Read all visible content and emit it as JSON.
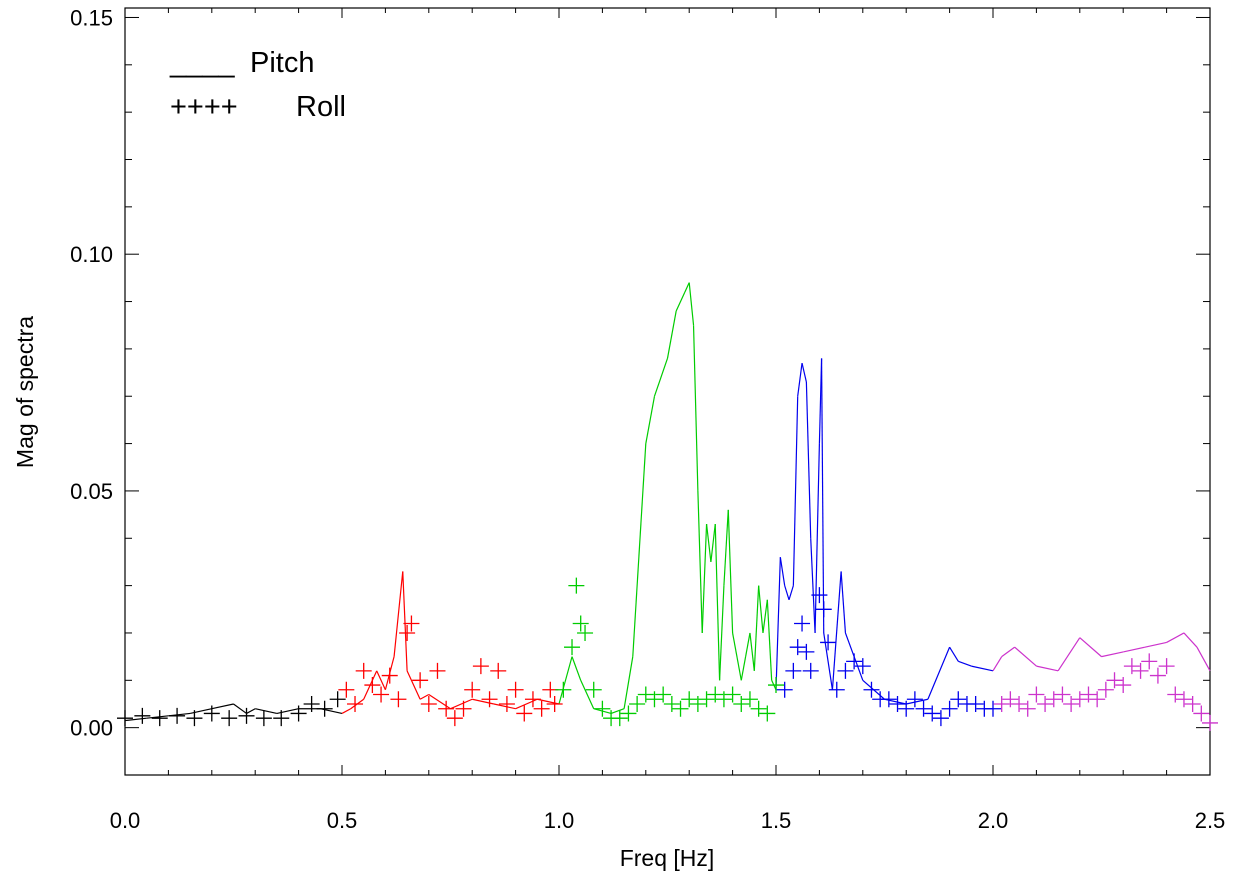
{
  "chart_data": {
    "type": "line",
    "title": "",
    "xlabel": "Freq [Hz]",
    "ylabel": "Mag of spectra",
    "xlim": [
      0.0,
      2.5
    ],
    "ylim": [
      -0.01,
      0.152
    ],
    "grid": false,
    "legend_position": "top-left",
    "x_ticks": [
      "0.0",
      "0.5",
      "1.0",
      "1.5",
      "2.0",
      "2.5"
    ],
    "y_ticks": [
      "0.00",
      "0.05",
      "0.10",
      "0.15"
    ],
    "legend": [
      {
        "marker": "____",
        "label": "Pitch"
      },
      {
        "marker": "++++",
        "label": "Roll"
      }
    ],
    "band_colors": [
      "#000000",
      "#ff0000",
      "#00cc00",
      "#0000ee",
      "#cc33cc"
    ],
    "series": [
      {
        "name": "Pitch",
        "style": "line",
        "points": [
          [
            0.0,
            0.0015
          ],
          [
            0.05,
            0.002
          ],
          [
            0.1,
            0.0025
          ],
          [
            0.15,
            0.003
          ],
          [
            0.2,
            0.004
          ],
          [
            0.25,
            0.005
          ],
          [
            0.28,
            0.003
          ],
          [
            0.3,
            0.004
          ],
          [
            0.35,
            0.003
          ],
          [
            0.4,
            0.004
          ],
          [
            0.45,
            0.004
          ],
          [
            0.5,
            0.003
          ],
          [
            0.52,
            0.004
          ],
          [
            0.55,
            0.006
          ],
          [
            0.58,
            0.012
          ],
          [
            0.6,
            0.008
          ],
          [
            0.62,
            0.015
          ],
          [
            0.64,
            0.033
          ],
          [
            0.65,
            0.012
          ],
          [
            0.68,
            0.006
          ],
          [
            0.7,
            0.007
          ],
          [
            0.75,
            0.004
          ],
          [
            0.8,
            0.006
          ],
          [
            0.85,
            0.005
          ],
          [
            0.9,
            0.004
          ],
          [
            0.95,
            0.006
          ],
          [
            1.0,
            0.005
          ],
          [
            1.03,
            0.015
          ],
          [
            1.05,
            0.01
          ],
          [
            1.08,
            0.004
          ],
          [
            1.12,
            0.003
          ],
          [
            1.15,
            0.004
          ],
          [
            1.17,
            0.015
          ],
          [
            1.2,
            0.06
          ],
          [
            1.22,
            0.07
          ],
          [
            1.25,
            0.078
          ],
          [
            1.27,
            0.088
          ],
          [
            1.29,
            0.092
          ],
          [
            1.3,
            0.094
          ],
          [
            1.31,
            0.085
          ],
          [
            1.32,
            0.05
          ],
          [
            1.33,
            0.02
          ],
          [
            1.34,
            0.043
          ],
          [
            1.35,
            0.035
          ],
          [
            1.36,
            0.043
          ],
          [
            1.37,
            0.01
          ],
          [
            1.38,
            0.03
          ],
          [
            1.39,
            0.046
          ],
          [
            1.4,
            0.02
          ],
          [
            1.42,
            0.01
          ],
          [
            1.43,
            0.015
          ],
          [
            1.44,
            0.02
          ],
          [
            1.45,
            0.012
          ],
          [
            1.46,
            0.03
          ],
          [
            1.47,
            0.02
          ],
          [
            1.48,
            0.027
          ],
          [
            1.49,
            0.01
          ],
          [
            1.5,
            0.008
          ],
          [
            1.51,
            0.036
          ],
          [
            1.52,
            0.03
          ],
          [
            1.53,
            0.027
          ],
          [
            1.54,
            0.03
          ],
          [
            1.55,
            0.07
          ],
          [
            1.56,
            0.077
          ],
          [
            1.57,
            0.073
          ],
          [
            1.58,
            0.04
          ],
          [
            1.59,
            0.02
          ],
          [
            1.6,
            0.06
          ],
          [
            1.605,
            0.078
          ],
          [
            1.61,
            0.02
          ],
          [
            1.63,
            0.008
          ],
          [
            1.65,
            0.033
          ],
          [
            1.66,
            0.02
          ],
          [
            1.7,
            0.01
          ],
          [
            1.75,
            0.006
          ],
          [
            1.8,
            0.005
          ],
          [
            1.85,
            0.006
          ],
          [
            1.9,
            0.017
          ],
          [
            1.92,
            0.014
          ],
          [
            1.95,
            0.013
          ],
          [
            2.0,
            0.012
          ],
          [
            2.02,
            0.015
          ],
          [
            2.05,
            0.017
          ],
          [
            2.1,
            0.013
          ],
          [
            2.15,
            0.012
          ],
          [
            2.2,
            0.019
          ],
          [
            2.25,
            0.015
          ],
          [
            2.3,
            0.016
          ],
          [
            2.35,
            0.017
          ],
          [
            2.4,
            0.018
          ],
          [
            2.44,
            0.02
          ],
          [
            2.47,
            0.017
          ],
          [
            2.5,
            0.012
          ]
        ]
      },
      {
        "name": "Roll",
        "style": "plus",
        "points": [
          [
            0.0,
            0.002
          ],
          [
            0.04,
            0.0025
          ],
          [
            0.08,
            0.002
          ],
          [
            0.12,
            0.0025
          ],
          [
            0.16,
            0.002
          ],
          [
            0.2,
            0.003
          ],
          [
            0.24,
            0.002
          ],
          [
            0.28,
            0.0025
          ],
          [
            0.32,
            0.002
          ],
          [
            0.36,
            0.002
          ],
          [
            0.4,
            0.003
          ],
          [
            0.43,
            0.005
          ],
          [
            0.46,
            0.004
          ],
          [
            0.49,
            0.006
          ],
          [
            0.51,
            0.008
          ],
          [
            0.53,
            0.005
          ],
          [
            0.55,
            0.012
          ],
          [
            0.57,
            0.009
          ],
          [
            0.59,
            0.007
          ],
          [
            0.61,
            0.011
          ],
          [
            0.63,
            0.006
          ],
          [
            0.65,
            0.02
          ],
          [
            0.66,
            0.022
          ],
          [
            0.68,
            0.01
          ],
          [
            0.7,
            0.005
          ],
          [
            0.72,
            0.012
          ],
          [
            0.74,
            0.004
          ],
          [
            0.76,
            0.002
          ],
          [
            0.78,
            0.004
          ],
          [
            0.8,
            0.008
          ],
          [
            0.82,
            0.013
          ],
          [
            0.84,
            0.006
          ],
          [
            0.86,
            0.012
          ],
          [
            0.88,
            0.005
          ],
          [
            0.9,
            0.008
          ],
          [
            0.92,
            0.003
          ],
          [
            0.94,
            0.006
          ],
          [
            0.96,
            0.004
          ],
          [
            0.98,
            0.008
          ],
          [
            0.99,
            0.005
          ],
          [
            1.01,
            0.008
          ],
          [
            1.03,
            0.017
          ],
          [
            1.04,
            0.03
          ],
          [
            1.05,
            0.022
          ],
          [
            1.06,
            0.02
          ],
          [
            1.08,
            0.008
          ],
          [
            1.1,
            0.004
          ],
          [
            1.12,
            0.002
          ],
          [
            1.14,
            0.002
          ],
          [
            1.16,
            0.003
          ],
          [
            1.18,
            0.005
          ],
          [
            1.2,
            0.007
          ],
          [
            1.22,
            0.006
          ],
          [
            1.24,
            0.007
          ],
          [
            1.26,
            0.005
          ],
          [
            1.28,
            0.004
          ],
          [
            1.3,
            0.006
          ],
          [
            1.32,
            0.005
          ],
          [
            1.34,
            0.006
          ],
          [
            1.36,
            0.007
          ],
          [
            1.38,
            0.006
          ],
          [
            1.4,
            0.007
          ],
          [
            1.42,
            0.005
          ],
          [
            1.44,
            0.006
          ],
          [
            1.46,
            0.004
          ],
          [
            1.48,
            0.003
          ],
          [
            1.5,
            0.009
          ],
          [
            1.52,
            0.008
          ],
          [
            1.54,
            0.012
          ],
          [
            1.55,
            0.017
          ],
          [
            1.56,
            0.022
          ],
          [
            1.57,
            0.016
          ],
          [
            1.58,
            0.012
          ],
          [
            1.6,
            0.028
          ],
          [
            1.61,
            0.025
          ],
          [
            1.62,
            0.018
          ],
          [
            1.64,
            0.008
          ],
          [
            1.66,
            0.012
          ],
          [
            1.68,
            0.014
          ],
          [
            1.7,
            0.013
          ],
          [
            1.72,
            0.008
          ],
          [
            1.74,
            0.006
          ],
          [
            1.76,
            0.006
          ],
          [
            1.78,
            0.005
          ],
          [
            1.8,
            0.004
          ],
          [
            1.82,
            0.006
          ],
          [
            1.84,
            0.004
          ],
          [
            1.86,
            0.003
          ],
          [
            1.88,
            0.002
          ],
          [
            1.9,
            0.004
          ],
          [
            1.92,
            0.006
          ],
          [
            1.94,
            0.005
          ],
          [
            1.96,
            0.005
          ],
          [
            1.98,
            0.004
          ],
          [
            2.0,
            0.004
          ],
          [
            2.02,
            0.005
          ],
          [
            2.04,
            0.006
          ],
          [
            2.06,
            0.005
          ],
          [
            2.08,
            0.004
          ],
          [
            2.1,
            0.007
          ],
          [
            2.12,
            0.005
          ],
          [
            2.14,
            0.006
          ],
          [
            2.16,
            0.007
          ],
          [
            2.18,
            0.005
          ],
          [
            2.2,
            0.006
          ],
          [
            2.22,
            0.007
          ],
          [
            2.24,
            0.006
          ],
          [
            2.26,
            0.008
          ],
          [
            2.28,
            0.01
          ],
          [
            2.3,
            0.009
          ],
          [
            2.32,
            0.013
          ],
          [
            2.34,
            0.012
          ],
          [
            2.36,
            0.014
          ],
          [
            2.38,
            0.011
          ],
          [
            2.4,
            0.013
          ],
          [
            2.42,
            0.007
          ],
          [
            2.44,
            0.006
          ],
          [
            2.46,
            0.005
          ],
          [
            2.48,
            0.003
          ],
          [
            2.5,
            0.001
          ]
        ]
      }
    ]
  }
}
